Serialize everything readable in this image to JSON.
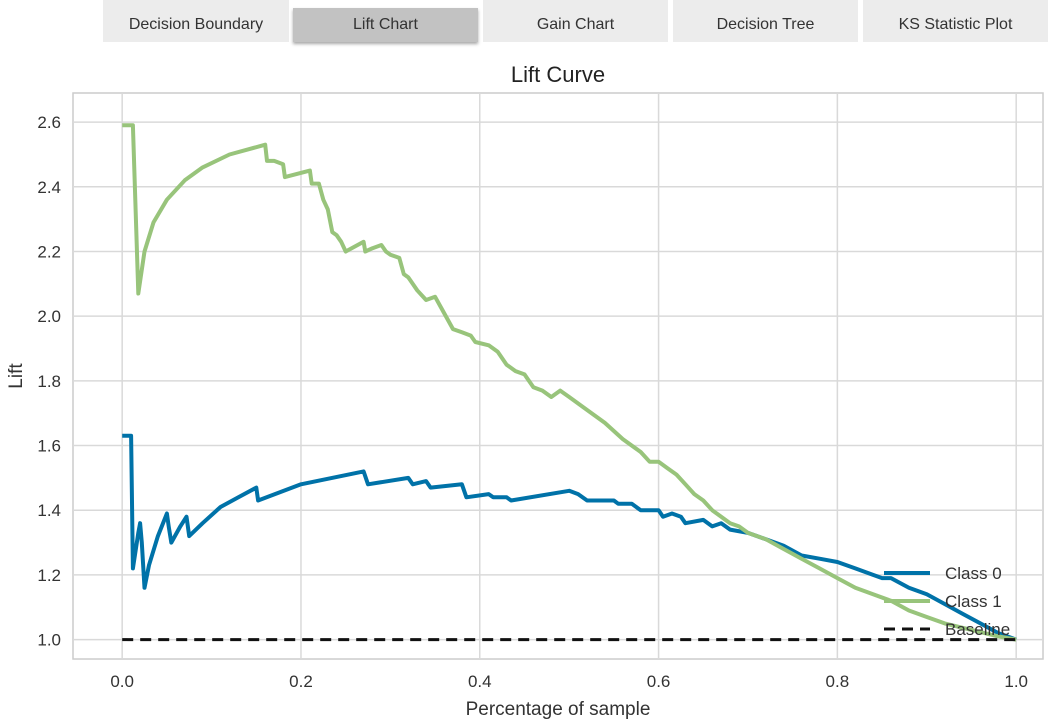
{
  "tabs": {
    "items": [
      {
        "label": "Decision Boundary",
        "active": false
      },
      {
        "label": "Lift Chart",
        "active": true
      },
      {
        "label": "Gain Chart",
        "active": false
      },
      {
        "label": "Decision Tree",
        "active": false
      },
      {
        "label": "KS Statistic Plot",
        "active": false
      }
    ]
  },
  "chart_data": {
    "type": "line",
    "title": "Lift Curve",
    "xlabel": "Percentage of sample",
    "ylabel": "Lift",
    "xlim": [
      -0.055,
      1.03
    ],
    "ylim": [
      0.94,
      2.69
    ],
    "xticks": [
      0.0,
      0.2,
      0.4,
      0.6,
      0.8,
      1.0
    ],
    "yticks": [
      1.0,
      1.2,
      1.4,
      1.6,
      1.8,
      2.0,
      2.2,
      2.4,
      2.6
    ],
    "grid": true,
    "legend_position": "lower-right",
    "series": [
      {
        "name": "Class 0",
        "color": "#0072a8",
        "points": [
          [
            0.0,
            1.63
          ],
          [
            0.01,
            1.63
          ],
          [
            0.012,
            1.22
          ],
          [
            0.018,
            1.33
          ],
          [
            0.02,
            1.36
          ],
          [
            0.022,
            1.3
          ],
          [
            0.025,
            1.16
          ],
          [
            0.03,
            1.23
          ],
          [
            0.04,
            1.32
          ],
          [
            0.05,
            1.39
          ],
          [
            0.052,
            1.35
          ],
          [
            0.055,
            1.3
          ],
          [
            0.065,
            1.35
          ],
          [
            0.072,
            1.38
          ],
          [
            0.075,
            1.32
          ],
          [
            0.09,
            1.36
          ],
          [
            0.11,
            1.41
          ],
          [
            0.13,
            1.44
          ],
          [
            0.15,
            1.47
          ],
          [
            0.152,
            1.43
          ],
          [
            0.2,
            1.48
          ],
          [
            0.27,
            1.52
          ],
          [
            0.275,
            1.48
          ],
          [
            0.32,
            1.5
          ],
          [
            0.325,
            1.48
          ],
          [
            0.34,
            1.49
          ],
          [
            0.345,
            1.47
          ],
          [
            0.38,
            1.48
          ],
          [
            0.385,
            1.44
          ],
          [
            0.41,
            1.45
          ],
          [
            0.415,
            1.44
          ],
          [
            0.43,
            1.44
          ],
          [
            0.435,
            1.43
          ],
          [
            0.5,
            1.46
          ],
          [
            0.51,
            1.45
          ],
          [
            0.52,
            1.43
          ],
          [
            0.55,
            1.43
          ],
          [
            0.555,
            1.42
          ],
          [
            0.57,
            1.42
          ],
          [
            0.58,
            1.4
          ],
          [
            0.6,
            1.4
          ],
          [
            0.605,
            1.38
          ],
          [
            0.615,
            1.39
          ],
          [
            0.625,
            1.38
          ],
          [
            0.63,
            1.36
          ],
          [
            0.65,
            1.37
          ],
          [
            0.66,
            1.35
          ],
          [
            0.67,
            1.36
          ],
          [
            0.68,
            1.34
          ],
          [
            0.7,
            1.33
          ],
          [
            0.72,
            1.31
          ],
          [
            0.74,
            1.29
          ],
          [
            0.76,
            1.26
          ],
          [
            0.78,
            1.25
          ],
          [
            0.8,
            1.24
          ],
          [
            0.82,
            1.22
          ],
          [
            0.84,
            1.2
          ],
          [
            0.85,
            1.19
          ],
          [
            0.86,
            1.19
          ],
          [
            0.88,
            1.16
          ],
          [
            0.9,
            1.14
          ],
          [
            0.92,
            1.11
          ],
          [
            0.94,
            1.08
          ],
          [
            0.96,
            1.05
          ],
          [
            0.98,
            1.02
          ],
          [
            1.0,
            1.0
          ]
        ]
      },
      {
        "name": "Class 1",
        "color": "#98c47b",
        "points": [
          [
            0.0,
            2.59
          ],
          [
            0.012,
            2.59
          ],
          [
            0.018,
            2.07
          ],
          [
            0.025,
            2.2
          ],
          [
            0.035,
            2.29
          ],
          [
            0.05,
            2.36
          ],
          [
            0.07,
            2.42
          ],
          [
            0.09,
            2.46
          ],
          [
            0.12,
            2.5
          ],
          [
            0.16,
            2.53
          ],
          [
            0.162,
            2.48
          ],
          [
            0.17,
            2.48
          ],
          [
            0.18,
            2.47
          ],
          [
            0.182,
            2.43
          ],
          [
            0.21,
            2.45
          ],
          [
            0.212,
            2.41
          ],
          [
            0.22,
            2.41
          ],
          [
            0.225,
            2.36
          ],
          [
            0.23,
            2.33
          ],
          [
            0.235,
            2.26
          ],
          [
            0.24,
            2.25
          ],
          [
            0.245,
            2.23
          ],
          [
            0.25,
            2.2
          ],
          [
            0.27,
            2.23
          ],
          [
            0.272,
            2.2
          ],
          [
            0.28,
            2.21
          ],
          [
            0.29,
            2.22
          ],
          [
            0.295,
            2.2
          ],
          [
            0.3,
            2.19
          ],
          [
            0.31,
            2.18
          ],
          [
            0.315,
            2.13
          ],
          [
            0.32,
            2.12
          ],
          [
            0.325,
            2.1
          ],
          [
            0.33,
            2.08
          ],
          [
            0.34,
            2.05
          ],
          [
            0.35,
            2.06
          ],
          [
            0.36,
            2.01
          ],
          [
            0.37,
            1.96
          ],
          [
            0.38,
            1.95
          ],
          [
            0.39,
            1.94
          ],
          [
            0.395,
            1.92
          ],
          [
            0.41,
            1.91
          ],
          [
            0.42,
            1.89
          ],
          [
            0.43,
            1.85
          ],
          [
            0.44,
            1.83
          ],
          [
            0.45,
            1.82
          ],
          [
            0.46,
            1.78
          ],
          [
            0.47,
            1.77
          ],
          [
            0.48,
            1.75
          ],
          [
            0.49,
            1.77
          ],
          [
            0.5,
            1.75
          ],
          [
            0.52,
            1.71
          ],
          [
            0.54,
            1.67
          ],
          [
            0.56,
            1.62
          ],
          [
            0.58,
            1.58
          ],
          [
            0.59,
            1.55
          ],
          [
            0.6,
            1.55
          ],
          [
            0.61,
            1.53
          ],
          [
            0.62,
            1.51
          ],
          [
            0.63,
            1.48
          ],
          [
            0.64,
            1.45
          ],
          [
            0.65,
            1.43
          ],
          [
            0.66,
            1.4
          ],
          [
            0.67,
            1.38
          ],
          [
            0.68,
            1.36
          ],
          [
            0.69,
            1.35
          ],
          [
            0.7,
            1.33
          ],
          [
            0.72,
            1.31
          ],
          [
            0.74,
            1.28
          ],
          [
            0.76,
            1.25
          ],
          [
            0.78,
            1.22
          ],
          [
            0.8,
            1.19
          ],
          [
            0.82,
            1.16
          ],
          [
            0.84,
            1.14
          ],
          [
            0.86,
            1.12
          ],
          [
            0.88,
            1.09
          ],
          [
            0.9,
            1.07
          ],
          [
            0.92,
            1.05
          ],
          [
            0.95,
            1.03
          ],
          [
            0.98,
            1.01
          ],
          [
            1.0,
            1.0
          ]
        ]
      },
      {
        "name": "Baseline",
        "color": "#111111",
        "dashed": true,
        "points": [
          [
            0.0,
            1.0
          ],
          [
            1.0,
            1.0
          ]
        ]
      }
    ]
  }
}
